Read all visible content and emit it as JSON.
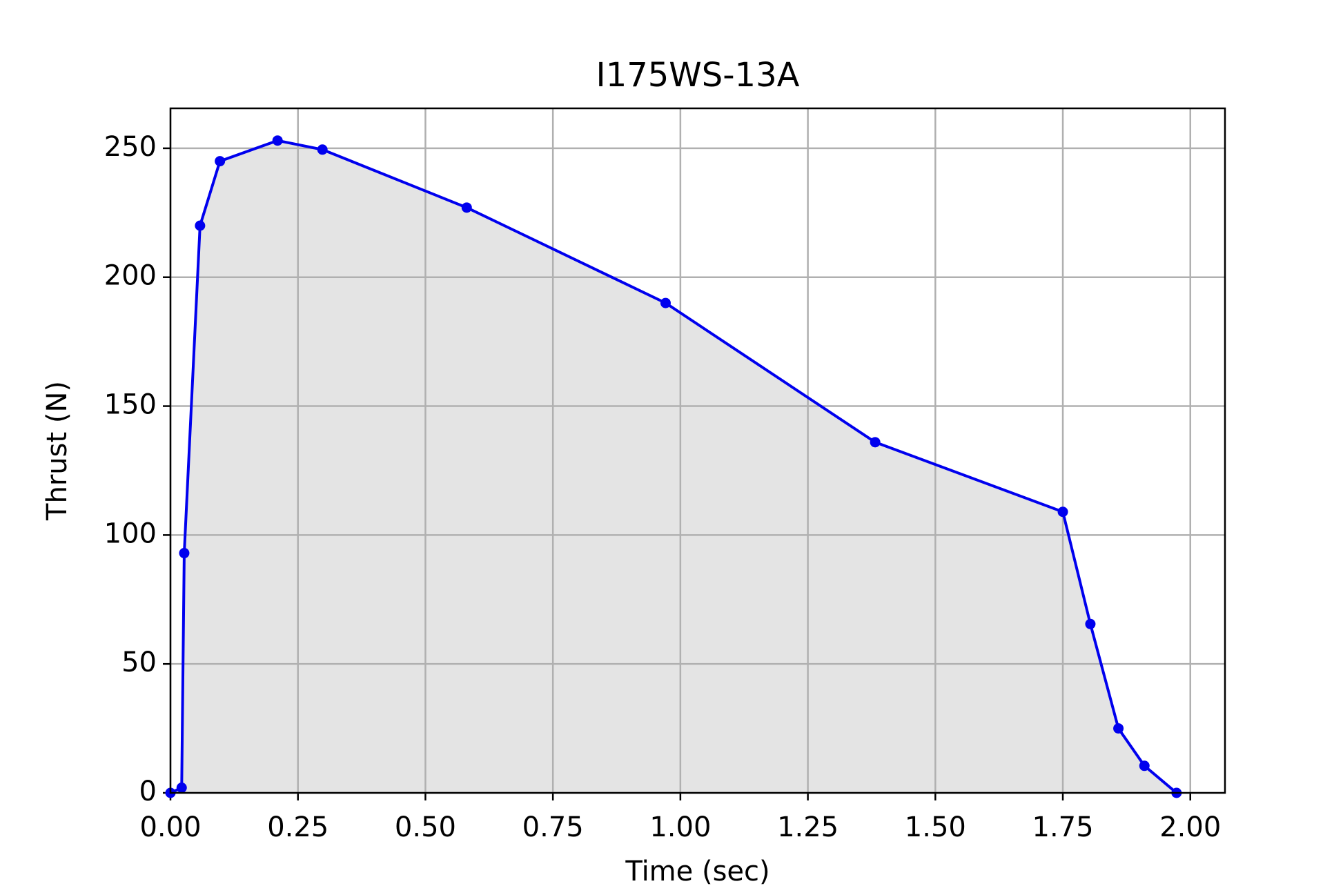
{
  "chart_data": {
    "type": "line",
    "title": "I175WS-13A",
    "x_label": "Time (sec)",
    "y_label": "Thrust (N)",
    "x": [
      0,
      0.022,
      0.027,
      0.058,
      0.097,
      0.21,
      0.298,
      0.581,
      0.971,
      1.382,
      1.75,
      1.804,
      1.859,
      1.91,
      1.973
    ],
    "series": [
      {
        "name": "Thrust",
        "color": "#0000ee",
        "values": [
          0,
          2,
          93,
          220,
          245,
          253,
          249.5,
          227,
          190,
          136,
          109,
          65.5,
          25,
          10.5,
          0
        ]
      }
    ],
    "fill_color": "#e4e4e4",
    "xlim": [
      0,
      2.068
    ],
    "ylim": [
      0,
      265.5
    ],
    "xticks": [
      {
        "value": 0,
        "label": "0.00"
      },
      0.25,
      {
        "value": 0.5,
        "label": "0.50"
      },
      0.75,
      {
        "value": 1,
        "label": "1.00"
      },
      1.25,
      {
        "value": 1.5,
        "label": "1.50"
      },
      1.75,
      {
        "value": 2,
        "label": "2.00"
      }
    ],
    "yticks": [
      0,
      50,
      100,
      150,
      200,
      250
    ],
    "grid": true
  }
}
